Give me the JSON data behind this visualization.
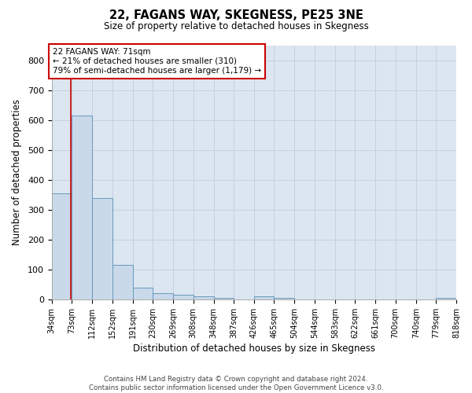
{
  "title": "22, FAGANS WAY, SKEGNESS, PE25 3NE",
  "subtitle": "Size of property relative to detached houses in Skegness",
  "xlabel": "Distribution of detached houses by size in Skegness",
  "ylabel": "Number of detached properties",
  "footer_line1": "Contains HM Land Registry data © Crown copyright and database right 2024.",
  "footer_line2": "Contains public sector information licensed under the Open Government Licence v3.0.",
  "bar_edges": [
    34,
    73,
    112,
    152,
    191,
    230,
    269,
    308,
    348,
    387,
    426,
    465,
    504,
    544,
    583,
    622,
    661,
    700,
    740,
    779,
    818
  ],
  "bar_values": [
    355,
    615,
    340,
    115,
    40,
    20,
    15,
    10,
    5,
    0,
    10,
    5,
    0,
    0,
    0,
    0,
    0,
    0,
    0,
    5
  ],
  "bar_color": "#c9d9ea",
  "bar_edge_color": "#6699bb",
  "property_sqm": 71,
  "property_line_color": "#cc0000",
  "annotation_text": "22 FAGANS WAY: 71sqm\n← 21% of detached houses are smaller (310)\n79% of semi-detached houses are larger (1,179) →",
  "annotation_box_color": "#ffffff",
  "annotation_box_edge_color": "#cc0000",
  "ylim": [
    0,
    850
  ],
  "yticks": [
    0,
    100,
    200,
    300,
    400,
    500,
    600,
    700,
    800
  ],
  "grid_color": "#c5cfe0",
  "background_color": "#dce6f0"
}
